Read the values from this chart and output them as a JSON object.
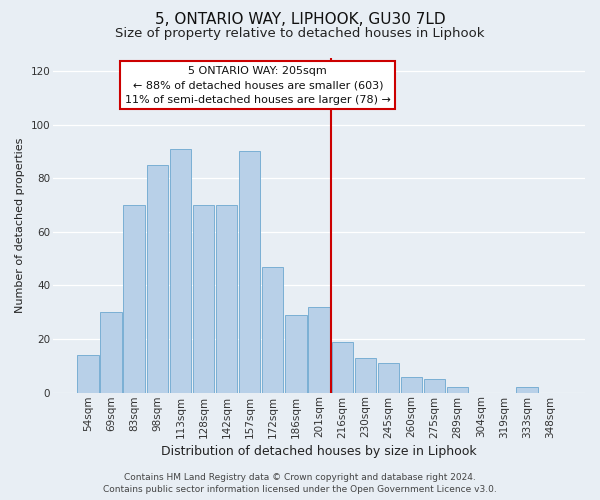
{
  "title": "5, ONTARIO WAY, LIPHOOK, GU30 7LD",
  "subtitle": "Size of property relative to detached houses in Liphook",
  "xlabel": "Distribution of detached houses by size in Liphook",
  "ylabel": "Number of detached properties",
  "categories": [
    "54sqm",
    "69sqm",
    "83sqm",
    "98sqm",
    "113sqm",
    "128sqm",
    "142sqm",
    "157sqm",
    "172sqm",
    "186sqm",
    "201sqm",
    "216sqm",
    "230sqm",
    "245sqm",
    "260sqm",
    "275sqm",
    "289sqm",
    "304sqm",
    "319sqm",
    "333sqm",
    "348sqm"
  ],
  "values": [
    14,
    30,
    70,
    85,
    91,
    70,
    70,
    90,
    47,
    29,
    32,
    19,
    13,
    11,
    6,
    5,
    2,
    0,
    0,
    2,
    0
  ],
  "bar_color": "#b8d0e8",
  "bar_edge_color": "#7aafd4",
  "vline_x": 10.5,
  "vline_color": "#cc0000",
  "annotation_title": "5 ONTARIO WAY: 205sqm",
  "annotation_line1": "← 88% of detached houses are smaller (603)",
  "annotation_line2": "11% of semi-detached houses are larger (78) →",
  "annotation_box_color": "#ffffff",
  "annotation_box_edge": "#cc0000",
  "ylim": [
    0,
    125
  ],
  "yticks": [
    0,
    20,
    40,
    60,
    80,
    100,
    120
  ],
  "footer1": "Contains HM Land Registry data © Crown copyright and database right 2024.",
  "footer2": "Contains public sector information licensed under the Open Government Licence v3.0.",
  "background_color": "#e8eef4",
  "grid_color": "#ffffff",
  "title_fontsize": 11,
  "subtitle_fontsize": 9.5,
  "xlabel_fontsize": 9,
  "ylabel_fontsize": 8,
  "tick_fontsize": 7.5,
  "footer_fontsize": 6.5
}
